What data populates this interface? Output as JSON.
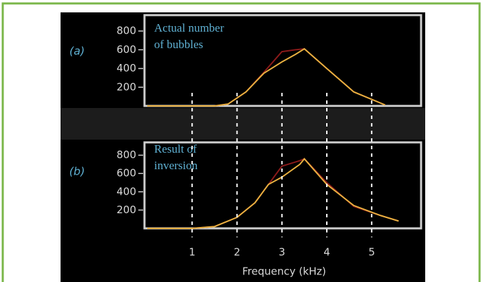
{
  "chart_data": [
    {
      "type": "line",
      "label": "(a)",
      "annotations": [
        "Actual number",
        "of bubbles"
      ],
      "x": [
        0,
        1,
        1.5,
        1.8,
        2.2,
        2.6,
        3.0,
        3.3,
        3.5,
        4.0,
        4.6,
        5.3
      ],
      "series": [
        {
          "color": "#8b1a1a",
          "values": [
            0,
            0,
            0,
            20,
            150,
            360,
            580,
            600,
            610,
            400,
            150,
            10
          ]
        },
        {
          "color": "#e8b040",
          "values": [
            0,
            0,
            0,
            20,
            150,
            350,
            470,
            550,
            610,
            400,
            150,
            10
          ]
        }
      ],
      "xlim": [
        0,
        6.1
      ],
      "ylim": [
        0,
        970
      ],
      "yticks": [
        200,
        400,
        600,
        800
      ]
    },
    {
      "type": "line",
      "label": "(b)",
      "annotations": [
        "Result of",
        "inversion"
      ],
      "x": [
        0,
        1,
        1.5,
        2.0,
        2.4,
        2.7,
        3.0,
        3.4,
        3.5,
        4.0,
        4.6,
        5.2,
        5.6
      ],
      "series": [
        {
          "color": "#8b1a1a",
          "values": [
            0,
            0,
            20,
            120,
            280,
            480,
            680,
            740,
            760,
            500,
            240,
            140,
            80
          ]
        },
        {
          "color": "#e8b040",
          "values": [
            0,
            0,
            20,
            120,
            280,
            480,
            560,
            700,
            760,
            480,
            250,
            140,
            80
          ]
        }
      ],
      "xlim": [
        0,
        6.1
      ],
      "ylim": [
        0,
        940
      ],
      "yticks": [
        200,
        400,
        600,
        800
      ],
      "xticks": [
        1,
        2,
        3,
        4,
        5
      ],
      "xlabel": "Frequency (kHz)"
    }
  ]
}
